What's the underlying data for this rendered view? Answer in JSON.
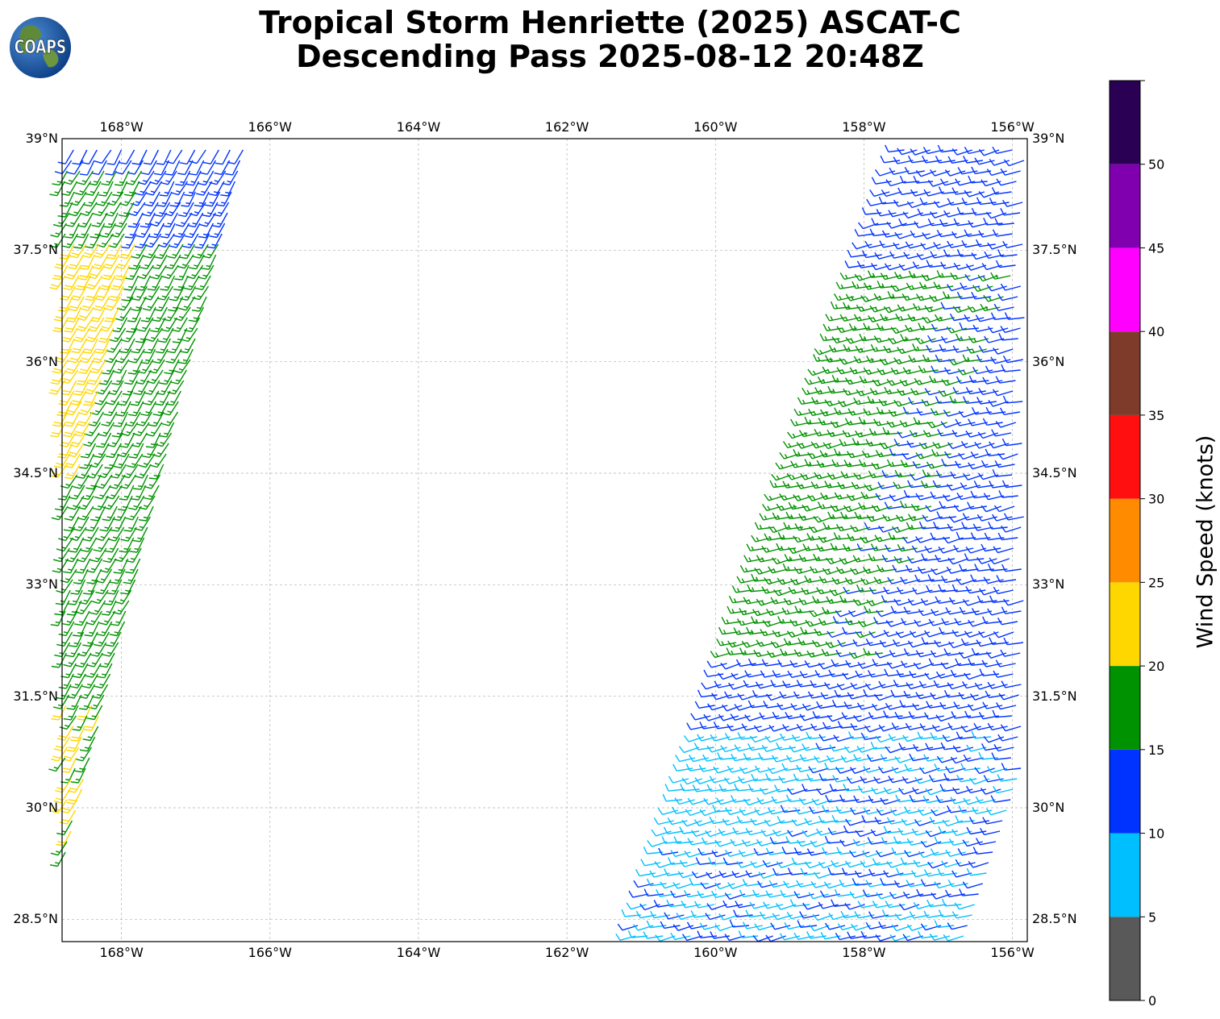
{
  "title": {
    "line1": "Tropical Storm Henriette (2025) ASCAT-C",
    "line2": "Descending Pass 2025-08-12 20:48Z"
  },
  "logo": {
    "text": "COAPS",
    "icon": "globe-logo-icon"
  },
  "map": {
    "type": "wind-barb-scatterometer-map",
    "lon_range": [
      -168.8,
      -155.8
    ],
    "lat_range": [
      28.2,
      39.0
    ],
    "lon_ticks": [
      "168°W",
      "166°W",
      "164°W",
      "162°W",
      "160°W",
      "158°W",
      "156°W"
    ],
    "lat_ticks": [
      "39°N",
      "37.5°N",
      "36°N",
      "34.5°N",
      "33°N",
      "31.5°N",
      "30°N",
      "28.5°N"
    ],
    "gridlines": true,
    "swaths": [
      {
        "name": "west",
        "lon_west_edge": [
          -168.8,
          -166.3
        ],
        "approx_wind_kt": "10-25"
      },
      {
        "name": "east",
        "lon_west_edge": [
          -161.3,
          -158.7
        ],
        "approx_wind_kt": "5-20"
      }
    ]
  },
  "colorbar": {
    "label": "Wind Speed (knots)",
    "ticks": [
      "0",
      "5",
      "10",
      "15",
      "20",
      "25",
      "30",
      "35",
      "40",
      "45",
      "50"
    ],
    "bins": [
      {
        "range": [
          0,
          5
        ],
        "color": "#595959"
      },
      {
        "range": [
          5,
          10
        ],
        "color": "#00bfff"
      },
      {
        "range": [
          10,
          15
        ],
        "color": "#0033ff"
      },
      {
        "range": [
          15,
          20
        ],
        "color": "#009200"
      },
      {
        "range": [
          20,
          25
        ],
        "color": "#ffd700"
      },
      {
        "range": [
          25,
          30
        ],
        "color": "#ff8c00"
      },
      {
        "range": [
          30,
          35
        ],
        "color": "#ff0f0f"
      },
      {
        "range": [
          35,
          40
        ],
        "color": "#7f3b29"
      },
      {
        "range": [
          40,
          45
        ],
        "color": "#ff00ff"
      },
      {
        "range": [
          45,
          50
        ],
        "color": "#8000b0"
      },
      {
        "range": [
          50,
          55
        ],
        "color": "#2a0055"
      }
    ]
  }
}
